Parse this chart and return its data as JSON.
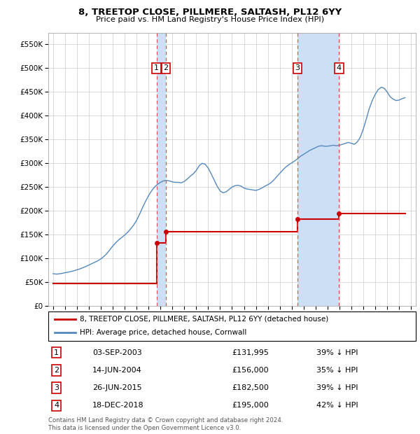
{
  "title": "8, TREETOP CLOSE, PILLMERE, SALTASH, PL12 6YY",
  "subtitle": "Price paid vs. HM Land Registry's House Price Index (HPI)",
  "footnote": "Contains HM Land Registry data © Crown copyright and database right 2024.\nThis data is licensed under the Open Government Licence v3.0.",
  "legend_line1": "8, TREETOP CLOSE, PILLMERE, SALTASH, PL12 6YY (detached house)",
  "legend_line2": "HPI: Average price, detached house, Cornwall",
  "ylim": [
    0,
    575000
  ],
  "yticks": [
    0,
    50000,
    100000,
    150000,
    200000,
    250000,
    300000,
    350000,
    400000,
    450000,
    500000,
    550000
  ],
  "ytick_labels": [
    "£0",
    "£50K",
    "£100K",
    "£150K",
    "£200K",
    "£250K",
    "£300K",
    "£350K",
    "£400K",
    "£450K",
    "£500K",
    "£550K"
  ],
  "xlim_start": 1994.6,
  "xlim_end": 2025.4,
  "sales": [
    {
      "num": 1,
      "date": "03-SEP-2003",
      "year": 2003.67,
      "price": 131995,
      "pct": "39%",
      "label": "£131,995"
    },
    {
      "num": 2,
      "date": "14-JUN-2004",
      "year": 2004.45,
      "price": 156000,
      "pct": "35%",
      "label": "£156,000"
    },
    {
      "num": 3,
      "date": "26-JUN-2015",
      "year": 2015.48,
      "price": 182500,
      "pct": "39%",
      "label": "£182,500"
    },
    {
      "num": 4,
      "date": "18-DEC-2018",
      "year": 2018.96,
      "price": 195000,
      "pct": "42%",
      "label": "£195,000"
    }
  ],
  "hpi_data": {
    "years": [
      1995.0,
      1995.25,
      1995.5,
      1995.75,
      1996.0,
      1996.25,
      1996.5,
      1996.75,
      1997.0,
      1997.25,
      1997.5,
      1997.75,
      1998.0,
      1998.25,
      1998.5,
      1998.75,
      1999.0,
      1999.25,
      1999.5,
      1999.75,
      2000.0,
      2000.25,
      2000.5,
      2000.75,
      2001.0,
      2001.25,
      2001.5,
      2001.75,
      2002.0,
      2002.25,
      2002.5,
      2002.75,
      2003.0,
      2003.25,
      2003.5,
      2003.75,
      2004.0,
      2004.25,
      2004.5,
      2004.75,
      2005.0,
      2005.25,
      2005.5,
      2005.75,
      2006.0,
      2006.25,
      2006.5,
      2006.75,
      2007.0,
      2007.25,
      2007.5,
      2007.75,
      2008.0,
      2008.25,
      2008.5,
      2008.75,
      2009.0,
      2009.25,
      2009.5,
      2009.75,
      2010.0,
      2010.25,
      2010.5,
      2010.75,
      2011.0,
      2011.25,
      2011.5,
      2011.75,
      2012.0,
      2012.25,
      2012.5,
      2012.75,
      2013.0,
      2013.25,
      2013.5,
      2013.75,
      2014.0,
      2014.25,
      2014.5,
      2014.75,
      2015.0,
      2015.25,
      2015.5,
      2015.75,
      2016.0,
      2016.25,
      2016.5,
      2016.75,
      2017.0,
      2017.25,
      2017.5,
      2017.75,
      2018.0,
      2018.25,
      2018.5,
      2018.75,
      2019.0,
      2019.25,
      2019.5,
      2019.75,
      2020.0,
      2020.25,
      2020.5,
      2020.75,
      2021.0,
      2021.25,
      2021.5,
      2021.75,
      2022.0,
      2022.25,
      2022.5,
      2022.75,
      2023.0,
      2023.25,
      2023.5,
      2023.75,
      2024.0,
      2024.25,
      2024.5
    ],
    "values": [
      68000,
      67000,
      67500,
      68500,
      70000,
      71000,
      72500,
      74000,
      76000,
      78000,
      80500,
      83000,
      86000,
      89000,
      92000,
      95000,
      99000,
      104000,
      110000,
      118000,
      126000,
      133000,
      139000,
      144000,
      149000,
      155000,
      162000,
      170000,
      180000,
      193000,
      207000,
      220000,
      232000,
      242000,
      250000,
      256000,
      260000,
      263000,
      264000,
      263000,
      261000,
      260000,
      260000,
      259000,
      262000,
      267000,
      273000,
      278000,
      285000,
      295000,
      300000,
      298000,
      290000,
      278000,
      265000,
      252000,
      242000,
      238000,
      240000,
      245000,
      250000,
      253000,
      254000,
      252000,
      248000,
      246000,
      245000,
      244000,
      243000,
      245000,
      248000,
      252000,
      255000,
      259000,
      265000,
      272000,
      279000,
      286000,
      292000,
      297000,
      301000,
      305000,
      310000,
      315000,
      319000,
      323000,
      327000,
      330000,
      333000,
      336000,
      337000,
      336000,
      336000,
      337000,
      338000,
      337000,
      338000,
      340000,
      342000,
      344000,
      342000,
      340000,
      345000,
      355000,
      372000,
      393000,
      415000,
      432000,
      445000,
      455000,
      460000,
      458000,
      450000,
      440000,
      435000,
      432000,
      433000,
      436000,
      438000
    ]
  },
  "price_data": {
    "years": [
      1995.0,
      2003.67,
      2003.67,
      2004.45,
      2004.45,
      2015.48,
      2015.48,
      2018.96,
      2018.96,
      2024.5
    ],
    "values": [
      47000,
      47000,
      131995,
      131995,
      156000,
      156000,
      182500,
      182500,
      195000,
      195000
    ]
  },
  "shaded_regions": [
    {
      "start": 2003.67,
      "end": 2004.45
    },
    {
      "start": 2015.48,
      "end": 2018.96
    }
  ],
  "colors": {
    "red_line": "#cc0000",
    "blue_line": "#5588bb",
    "shade_fill": "#ccdff5",
    "dashed_line": "#dd5555",
    "box_border": "#cc0000",
    "grid": "#cccccc",
    "bg": "#ffffff"
  }
}
